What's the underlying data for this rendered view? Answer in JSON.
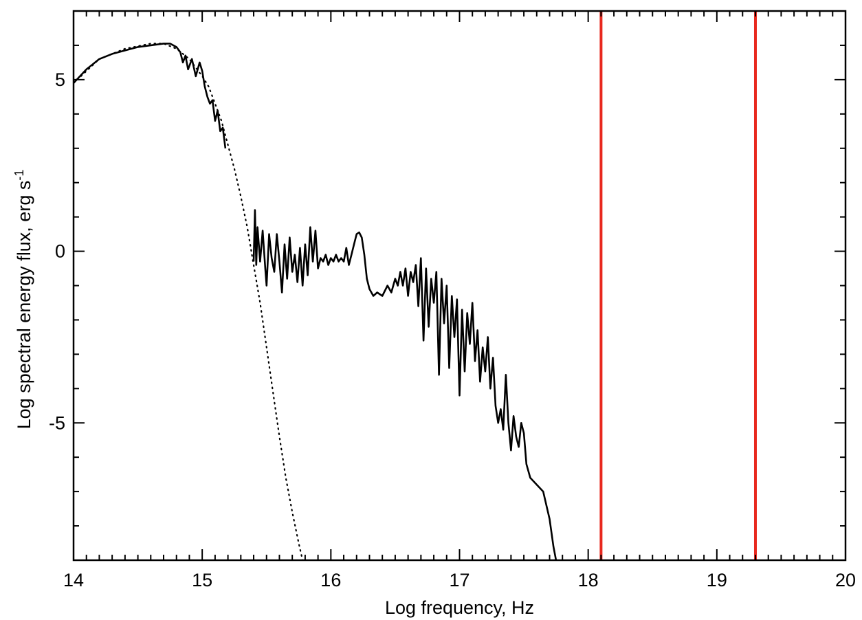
{
  "chart_data": {
    "type": "line",
    "title": "",
    "xlabel": "Log frequency, Hz",
    "ylabel": "Log spectral energy flux, erg s",
    "ylabel_superscript": "-1",
    "xlim": [
      14,
      20
    ],
    "ylim": [
      -9,
      7
    ],
    "x_ticks": [
      {
        "value": 14,
        "label": "14"
      },
      {
        "value": 15,
        "label": "15"
      },
      {
        "value": 16,
        "label": "16"
      },
      {
        "value": 17,
        "label": "17"
      },
      {
        "value": 18,
        "label": "18"
      },
      {
        "value": 19,
        "label": "19"
      },
      {
        "value": 20,
        "label": "20"
      }
    ],
    "y_ticks": [
      {
        "value": 5,
        "label": "5"
      },
      {
        "value": 0,
        "label": "0"
      },
      {
        "value": -5,
        "label": "-5"
      }
    ],
    "grid": false,
    "series": [
      {
        "style": "solid",
        "color": "#000000",
        "segments": [
          {
            "x": [
              14.0,
              14.1,
              14.2,
              14.3,
              14.4,
              14.5,
              14.6,
              14.7,
              14.75,
              14.8,
              14.83,
              14.85,
              14.87,
              14.89,
              14.92,
              14.95,
              14.98,
              15.0,
              15.02,
              15.04,
              15.06,
              15.08,
              15.1,
              15.12,
              15.14,
              15.16,
              15.18
            ],
            "y": [
              4.9,
              5.3,
              5.6,
              5.75,
              5.85,
              5.95,
              6.0,
              6.05,
              6.05,
              5.95,
              5.8,
              5.5,
              5.7,
              5.3,
              5.6,
              5.1,
              5.5,
              5.25,
              4.8,
              4.5,
              4.3,
              4.4,
              3.8,
              4.1,
              3.5,
              3.6,
              3.0
            ]
          },
          {
            "x": [
              15.4,
              15.41,
              15.42,
              15.43,
              15.45,
              15.47,
              15.49,
              15.5,
              15.52,
              15.54,
              15.56,
              15.58,
              15.6,
              15.62,
              15.64,
              15.66,
              15.68,
              15.7,
              15.72,
              15.74,
              15.76,
              15.78,
              15.8,
              15.82,
              15.84,
              15.86,
              15.88,
              15.9,
              15.92,
              15.94,
              15.96,
              15.98,
              16.0,
              16.02,
              16.04,
              16.06,
              16.08,
              16.1,
              16.12,
              16.14,
              16.16,
              16.18,
              16.2,
              16.22,
              16.24,
              16.26,
              16.28,
              16.3,
              16.33,
              16.36,
              16.4,
              16.44,
              16.47,
              16.5,
              16.52,
              16.54,
              16.56,
              16.58,
              16.6,
              16.62,
              16.64,
              16.66,
              16.68,
              16.7,
              16.72,
              16.74,
              16.76,
              16.78,
              16.8,
              16.82,
              16.84,
              16.86,
              16.88,
              16.9,
              16.92,
              16.94,
              16.96,
              16.98,
              17.0,
              17.02,
              17.04,
              17.06,
              17.08,
              17.1,
              17.12,
              17.14,
              17.16,
              17.18,
              17.2,
              17.22,
              17.24,
              17.26,
              17.28,
              17.3,
              17.32,
              17.34,
              17.36,
              17.38,
              17.4,
              17.42,
              17.44,
              17.46,
              17.48,
              17.5,
              17.52,
              17.55,
              17.6,
              17.65,
              17.7,
              17.73,
              17.75
            ],
            "y": [
              -0.3,
              1.2,
              -0.4,
              0.7,
              -0.3,
              0.6,
              -0.5,
              -1.0,
              0.5,
              -0.2,
              -0.6,
              0.5,
              -0.3,
              -1.2,
              0.2,
              -0.8,
              0.4,
              -0.6,
              -0.1,
              -0.9,
              0.1,
              -1.0,
              0.2,
              -0.7,
              0.7,
              -0.3,
              0.6,
              -0.5,
              -0.2,
              -0.3,
              -0.1,
              -0.4,
              -0.2,
              -0.3,
              -0.1,
              -0.3,
              -0.2,
              -0.3,
              0.1,
              -0.4,
              -0.1,
              0.2,
              0.5,
              0.55,
              0.4,
              -0.1,
              -0.8,
              -1.1,
              -1.3,
              -1.2,
              -1.3,
              -1.0,
              -1.2,
              -0.8,
              -1.0,
              -0.6,
              -1.0,
              -0.5,
              -1.3,
              -0.6,
              -0.9,
              -0.4,
              -1.6,
              -0.2,
              -2.6,
              -0.5,
              -2.2,
              -0.8,
              -1.5,
              -0.6,
              -3.6,
              -0.8,
              -2.1,
              -1.0,
              -3.4,
              -1.3,
              -2.5,
              -1.4,
              -4.2,
              -1.7,
              -3.5,
              -1.8,
              -2.7,
              -1.5,
              -3.2,
              -2.3,
              -3.8,
              -2.8,
              -3.5,
              -2.5,
              -4.0,
              -3.1,
              -4.5,
              -5.0,
              -4.6,
              -5.2,
              -3.6,
              -5.0,
              -5.8,
              -4.8,
              -5.4,
              -5.7,
              -5.0,
              -5.3,
              -6.2,
              -6.6,
              -6.8,
              -7.0,
              -7.8,
              -8.6,
              -9.0
            ]
          }
        ]
      },
      {
        "style": "dotted",
        "color": "#000000",
        "x": [
          14.0,
          14.2,
          14.4,
          14.6,
          14.7,
          14.8,
          14.9,
          15.0,
          15.05,
          15.1,
          15.15,
          15.2,
          15.25,
          15.3,
          15.35,
          15.4,
          15.45,
          15.5,
          15.55,
          15.6,
          15.65,
          15.7,
          15.75,
          15.78
        ],
        "y": [
          4.9,
          5.6,
          5.9,
          6.05,
          6.05,
          5.9,
          5.6,
          5.1,
          4.8,
          4.3,
          3.8,
          3.1,
          2.4,
          1.6,
          0.7,
          -0.4,
          -1.5,
          -2.8,
          -4.1,
          -5.4,
          -6.6,
          -7.6,
          -8.5,
          -9.0
        ]
      }
    ],
    "vertical_lines": [
      {
        "x": 18.1,
        "color": "#e8281e"
      },
      {
        "x": 19.3,
        "color": "#e8281e"
      }
    ]
  }
}
